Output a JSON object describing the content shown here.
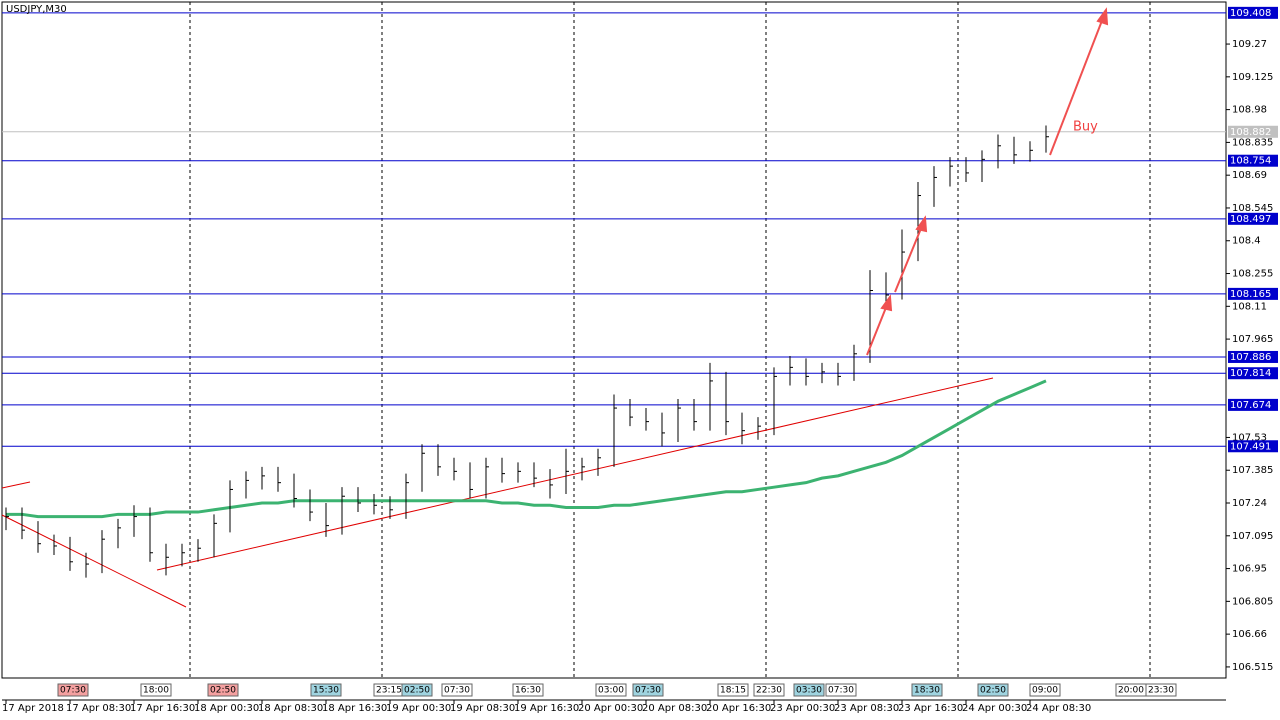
{
  "chart_data": {
    "type": "ohlc",
    "title": "USDJPY,M30",
    "ylim": [
      106.466,
      109.456
    ],
    "yticks": [
      109.27,
      109.125,
      108.98,
      108.835,
      108.69,
      108.545,
      108.4,
      108.255,
      108.11,
      107.965,
      107.53,
      107.385,
      107.24,
      107.095,
      106.95,
      106.805,
      106.66,
      106.515
    ],
    "categories": [
      "17 Apr 2018",
      null,
      null,
      null,
      "17 Apr 08:30",
      null,
      null,
      null,
      "17 Apr 16:30",
      null,
      null,
      null,
      "18 Apr 00:30",
      null,
      null,
      null,
      "18 Apr 08:30",
      null,
      null,
      null,
      "18 Apr 16:30",
      null,
      null,
      null,
      "19 Apr 00:30",
      null,
      null,
      null,
      "19 Apr 08:30",
      null,
      null,
      null,
      "19 Apr 16:30",
      null,
      null,
      null,
      "20 Apr 00:30",
      null,
      null,
      null,
      "20 Apr 08:30",
      null,
      null,
      null,
      "20 Apr 16:30",
      null,
      null,
      null,
      "23 Apr 00:30",
      null,
      null,
      null,
      "23 Apr 08:30",
      null,
      null,
      null,
      "23 Apr 16:30",
      null,
      null,
      null,
      "24 Apr 00:30",
      null,
      null,
      null,
      "24 Apr 08:30",
      null
    ],
    "high": [
      107.22,
      107.22,
      107.16,
      107.1,
      107.09,
      107.02,
      107.12,
      107.17,
      107.23,
      107.22,
      107.06,
      107.06,
      107.08,
      107.19,
      107.34,
      107.38,
      107.4,
      107.4,
      107.37,
      107.3,
      107.24,
      107.31,
      107.31,
      107.28,
      107.27,
      107.37,
      107.5,
      107.5,
      107.44,
      107.42,
      107.44,
      107.44,
      107.42,
      107.42,
      107.39,
      107.48,
      107.44,
      107.48,
      107.72,
      107.7,
      107.66,
      107.64,
      107.7,
      107.7,
      107.86,
      107.82,
      107.64,
      107.62,
      107.84,
      107.89,
      107.88,
      107.86,
      107.86,
      107.94,
      108.27,
      108.26,
      108.45,
      108.66,
      108.73,
      108.77,
      108.77,
      108.8,
      108.87,
      108.86,
      108.84,
      108.91
    ],
    "low": [
      107.12,
      107.08,
      107.02,
      107.01,
      106.94,
      106.91,
      106.93,
      107.04,
      107.09,
      106.98,
      106.92,
      106.96,
      106.98,
      107.0,
      107.11,
      107.26,
      107.3,
      107.29,
      107.22,
      107.16,
      107.09,
      107.1,
      107.2,
      107.19,
      107.17,
      107.17,
      107.29,
      107.36,
      107.34,
      107.26,
      107.26,
      107.33,
      107.33,
      107.31,
      107.26,
      107.28,
      107.34,
      107.36,
      107.4,
      107.58,
      107.56,
      107.49,
      107.51,
      107.56,
      107.56,
      107.54,
      107.5,
      107.52,
      107.54,
      107.76,
      107.76,
      107.77,
      107.76,
      107.78,
      107.86,
      108.12,
      108.14,
      108.31,
      108.55,
      108.64,
      108.66,
      108.66,
      108.72,
      108.74,
      108.75,
      108.79
    ],
    "close": [
      107.18,
      107.12,
      107.06,
      107.05,
      106.98,
      106.97,
      107.08,
      107.13,
      107.18,
      107.02,
      107.0,
      107.02,
      107.04,
      107.15,
      107.3,
      107.34,
      107.36,
      107.33,
      107.26,
      107.2,
      107.14,
      107.27,
      107.24,
      107.23,
      107.21,
      107.33,
      107.46,
      107.4,
      107.38,
      107.3,
      107.4,
      107.37,
      107.38,
      107.35,
      107.32,
      107.38,
      107.4,
      107.44,
      107.66,
      107.62,
      107.6,
      107.55,
      107.66,
      107.6,
      107.78,
      107.6,
      107.56,
      107.58,
      107.8,
      107.84,
      107.8,
      107.82,
      107.8,
      107.9,
      108.18,
      108.16,
      108.35,
      108.6,
      108.68,
      108.73,
      108.7,
      108.76,
      108.82,
      108.78,
      108.8,
      108.86
    ],
    "ma": [
      107.19,
      107.19,
      107.18,
      107.18,
      107.18,
      107.18,
      107.18,
      107.19,
      107.19,
      107.19,
      107.2,
      107.2,
      107.2,
      107.21,
      107.22,
      107.23,
      107.24,
      107.24,
      107.25,
      107.25,
      107.25,
      107.25,
      107.25,
      107.25,
      107.25,
      107.25,
      107.25,
      107.25,
      107.25,
      107.25,
      107.25,
      107.24,
      107.24,
      107.23,
      107.23,
      107.22,
      107.22,
      107.22,
      107.23,
      107.23,
      107.24,
      107.25,
      107.26,
      107.27,
      107.28,
      107.29,
      107.29,
      107.3,
      107.31,
      107.32,
      107.33,
      107.35,
      107.36,
      107.38,
      107.4,
      107.42,
      107.45,
      107.49,
      107.53,
      107.57,
      107.61,
      107.65,
      107.69,
      107.72,
      107.75,
      107.78
    ],
    "bar_color": "#000000",
    "ma_color": "#3cb371",
    "levels": [
      109.408,
      108.754,
      108.497,
      108.165,
      107.886,
      107.814,
      107.674,
      107.491
    ],
    "level_color": "#0000cc",
    "price": 108.882,
    "price_color": "#c0c0c0",
    "annotation": "Buy",
    "events": [
      "07:30",
      "18:00",
      "02:50",
      "15:30",
      "23:15",
      "02:50",
      "07:30",
      "16:30",
      "03:00",
      "07:30",
      "18:15",
      "22:30",
      "03:30",
      "07:30",
      "18:30",
      "02:50",
      "09:00",
      "20:00",
      "23:30"
    ]
  }
}
